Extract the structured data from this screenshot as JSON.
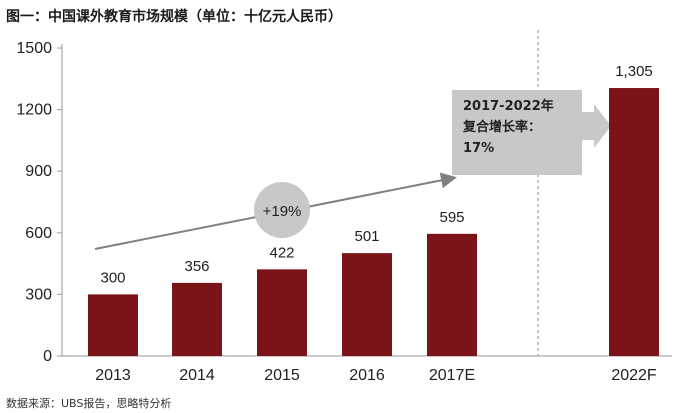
{
  "chart_data": {
    "type": "bar",
    "title": "图一：中国课外教育市场规模（单位：十亿元人民币）",
    "categories": [
      "2013",
      "2014",
      "2015",
      "2016",
      "2017E",
      "2022F"
    ],
    "values": [
      300,
      356,
      422,
      501,
      595,
      1305
    ],
    "data_labels": [
      "300",
      "356",
      "422",
      "501",
      "595",
      "1,305"
    ],
    "ylim": [
      0,
      1500
    ],
    "yticks": [
      "0",
      "300",
      "600",
      "900",
      "1200",
      "1500"
    ],
    "xlabel": "",
    "ylabel": "",
    "grid": false,
    "bar_color": "#7b1419",
    "annotations": {
      "growth_label": "+19%",
      "cagr_lines": [
        "2017-2022年",
        "复合增长率：",
        "17%"
      ]
    }
  },
  "source": "数据来源：UBS报告，思略特分析",
  "colors": {
    "bar": "#7b1419",
    "axis": "#999999",
    "bubble": "#c8c8c8",
    "arrow": "#808080"
  }
}
